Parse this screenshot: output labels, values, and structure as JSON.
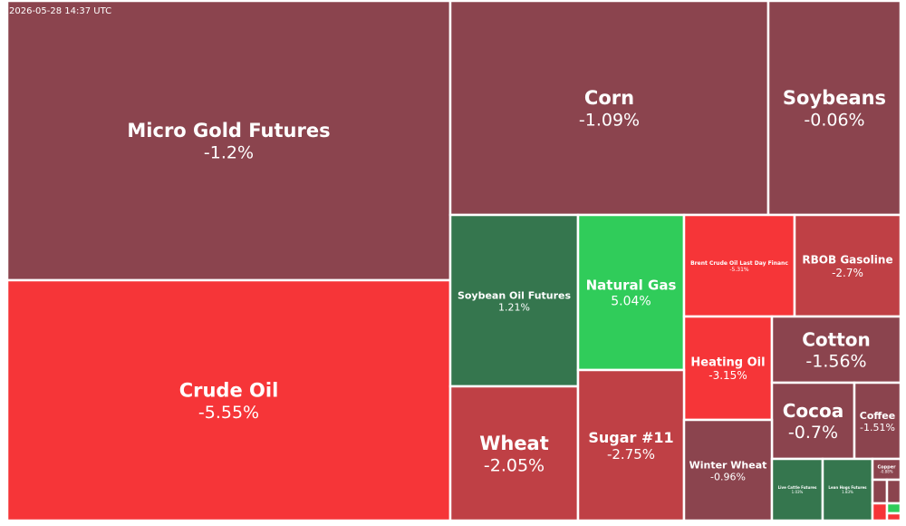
{
  "timestamp": "2026-05-28 14:37 UTC",
  "colors": {
    "deep_red": "#f63538",
    "red": "#bf4045",
    "muted_red": "#8b444e",
    "muted_green": "#35764e",
    "bright_green": "#30cc5a"
  },
  "chart_data": {
    "type": "heatmap",
    "title": "",
    "tiles": [
      {
        "name": "Micro Gold Futures",
        "change": "-1.2%",
        "color": "#8b444e"
      },
      {
        "name": "Crude Oil",
        "change": "-5.55%",
        "color": "#f63538"
      },
      {
        "name": "Corn",
        "change": "-1.09%",
        "color": "#8b444e"
      },
      {
        "name": "Soybeans",
        "change": "-0.06%",
        "color": "#8b444e"
      },
      {
        "name": "Soybean Oil Futures",
        "change": "1.21%",
        "color": "#35764e"
      },
      {
        "name": "Natural Gas",
        "change": "5.04%",
        "color": "#30cc5a"
      },
      {
        "name": "Brent Crude Oil Last Day Financ",
        "change": "-5.31%",
        "color": "#f63538"
      },
      {
        "name": "RBOB Gasoline",
        "change": "-2.7%",
        "color": "#bf4045"
      },
      {
        "name": "Heating Oil",
        "change": "-3.15%",
        "color": "#f63538"
      },
      {
        "name": "Cotton",
        "change": "-1.56%",
        "color": "#8b444e"
      },
      {
        "name": "Wheat",
        "change": "-2.05%",
        "color": "#bf4045"
      },
      {
        "name": "Sugar #11",
        "change": "-2.75%",
        "color": "#bf4045"
      },
      {
        "name": "Cocoa",
        "change": "-0.7%",
        "color": "#8b444e"
      },
      {
        "name": "Coffee",
        "change": "-1.51%",
        "color": "#8b444e"
      },
      {
        "name": "Winter Wheat",
        "change": "-0.96%",
        "color": "#8b444e"
      },
      {
        "name": "Live Cattle Futures",
        "change": "1.03%",
        "color": "#35764e"
      },
      {
        "name": "Lean Hogs Futures",
        "change": "1.83%",
        "color": "#35764e"
      },
      {
        "name": "Copper",
        "change": "-0.88%",
        "color": "#8b444e"
      },
      {
        "name": "",
        "change": "",
        "color": "#8b444e"
      },
      {
        "name": "",
        "change": "",
        "color": "#8b444e"
      },
      {
        "name": "",
        "change": "",
        "color": "#f63538"
      },
      {
        "name": "",
        "change": "",
        "color": "#30cc5a"
      },
      {
        "name": "",
        "change": "",
        "color": "#f63538"
      }
    ]
  }
}
